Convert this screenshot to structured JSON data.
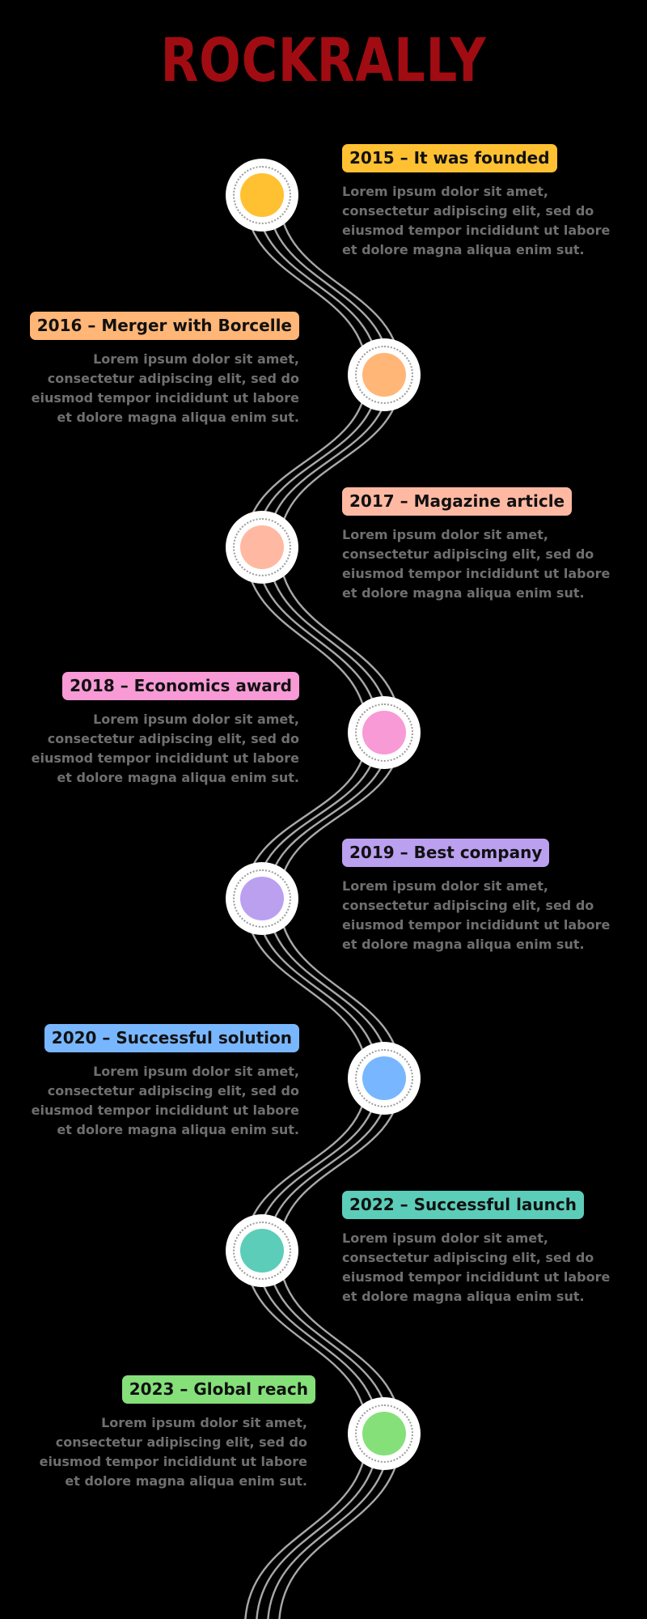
{
  "title": "ROCKRALLY",
  "colors": {
    "background": "#000000",
    "title": "#a00c12",
    "road": "#a9a9a9",
    "description": "#6f6f6f"
  },
  "milestones": [
    {
      "label": "2015 – It was founded",
      "color": "#ffc132",
      "description": [
        "Lorem ipsum dolor sit amet,",
        "consectetur adipiscing elit, sed do",
        "eiusmod tempor incididunt ut labore",
        "et dolore magna aliqua enim sut."
      ]
    },
    {
      "label": "2016 – Merger with Borcelle",
      "color": "#ffb676",
      "description": [
        "Lorem ipsum dolor sit amet,",
        "consectetur adipiscing elit, sed do",
        "eiusmod tempor incididunt ut labore",
        "et dolore magna aliqua enim sut."
      ]
    },
    {
      "label": "2017 – Magazine article",
      "color": "#ffb9a2",
      "description": [
        "Lorem ipsum dolor sit amet,",
        "consectetur adipiscing elit, sed do",
        "eiusmod tempor incididunt ut labore",
        "et dolore magna aliqua enim sut."
      ]
    },
    {
      "label": "2018 – Economics award",
      "color": "#f79ad6",
      "description": [
        "Lorem ipsum dolor sit amet,",
        "consectetur adipiscing elit, sed do",
        "eiusmod tempor incididunt ut labore",
        "et dolore magna aliqua enim sut."
      ]
    },
    {
      "label": "2019 – Best company",
      "color": "#bba0f0",
      "description": [
        "Lorem ipsum dolor sit amet,",
        "consectetur adipiscing elit, sed do",
        "eiusmod tempor incididunt ut labore",
        "et dolore magna aliqua enim sut."
      ]
    },
    {
      "label": "2020 – Successful solution",
      "color": "#78b7ff",
      "description": [
        "Lorem ipsum dolor sit amet,",
        "consectetur adipiscing elit, sed do",
        "eiusmod tempor incididunt ut labore",
        "et dolore magna aliqua enim sut."
      ]
    },
    {
      "label": "2022 – Successful launch",
      "color": "#5ccdb8",
      "description": [
        "Lorem ipsum dolor sit amet,",
        "consectetur adipiscing elit, sed do",
        "eiusmod tempor incididunt ut labore",
        "et dolore magna aliqua enim sut."
      ]
    },
    {
      "label": "2023 – Global reach",
      "color": "#85e07a",
      "description": [
        "Lorem ipsum dolor sit amet,",
        "consectetur adipiscing elit, sed do",
        "eiusmod tempor incididunt ut labore",
        "et dolore magna aliqua enim sut."
      ]
    }
  ]
}
